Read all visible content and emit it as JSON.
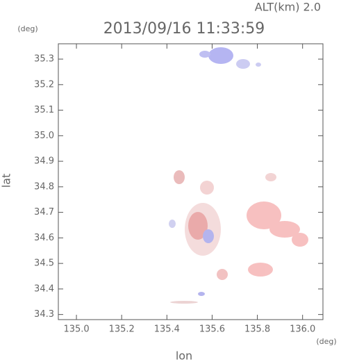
{
  "chart_data": {
    "type": "map",
    "title": "ALT(km) 2.0",
    "subtitle": "2013/09/16 11:33:59",
    "x_label": "lon",
    "y_label": "lat",
    "x_unit": "(deg)",
    "y_unit": "(deg)",
    "xlim": [
      134.92,
      136.09
    ],
    "ylim": [
      34.28,
      35.36
    ],
    "xticks": [
      {
        "value": 135,
        "label": "135.0"
      },
      135.2,
      135.4,
      135.6,
      135.8,
      {
        "value": 136,
        "label": "136.0"
      }
    ],
    "yticks": [
      34.3,
      34.4,
      34.5,
      34.6,
      34.7,
      34.8,
      34.9,
      {
        "value": 35,
        "label": "35.0"
      },
      35.1,
      35.2,
      35.3
    ]
  }
}
